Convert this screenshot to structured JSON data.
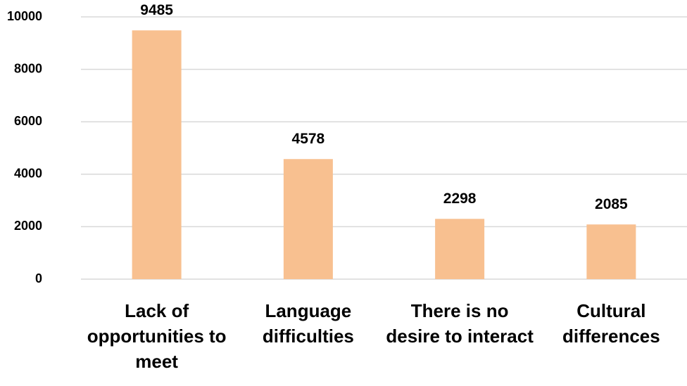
{
  "chart_data": {
    "type": "bar",
    "categories": [
      "Lack of opportunities to meet",
      "Language difficulties",
      "There is no desire to interact",
      "Cultural differences"
    ],
    "values": [
      9485,
      4578,
      2298,
      2085
    ],
    "color": "#f8c090",
    "ylim": [
      0,
      10000
    ],
    "yticks": [
      0,
      2000,
      4000,
      6000,
      8000,
      10000
    ],
    "grid": true
  }
}
